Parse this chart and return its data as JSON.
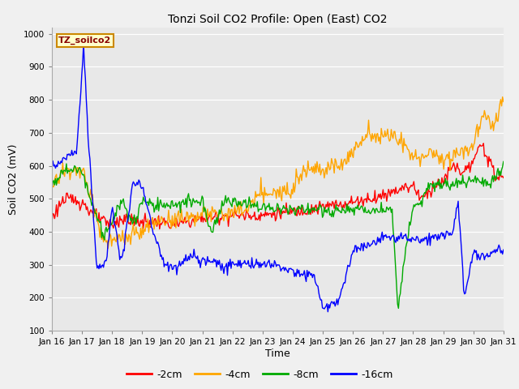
{
  "title": "Tonzi Soil CO2 Profile: Open (East) CO2",
  "xlabel": "Time",
  "ylabel": "Soil CO2 (mV)",
  "ylim": [
    100,
    1020
  ],
  "yticks": [
    100,
    200,
    300,
    400,
    500,
    600,
    700,
    800,
    900,
    1000
  ],
  "label_box_text": "TZ_soilco2",
  "legend_entries": [
    "-2cm",
    "-4cm",
    "-8cm",
    "-16cm"
  ],
  "line_colors": [
    "#ff0000",
    "#ffa500",
    "#00aa00",
    "#0000ff"
  ],
  "days": [
    "Jan 16",
    "Jan 17",
    "Jan 18",
    "Jan 19",
    "Jan 20",
    "Jan 21",
    "Jan 22",
    "Jan 23",
    "Jan 24",
    "Jan 25",
    "Jan 26",
    "Jan 27",
    "Jan 28",
    "Jan 29",
    "Jan 30",
    "Jan 31"
  ]
}
